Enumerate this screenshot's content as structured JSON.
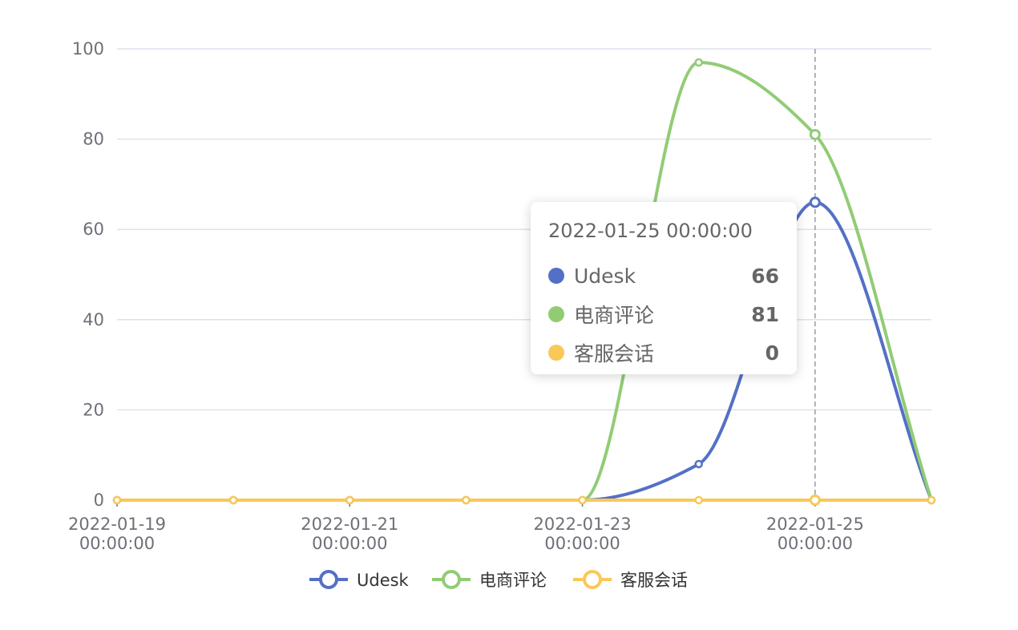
{
  "chart_data": {
    "type": "line",
    "smooth": true,
    "title": "",
    "xlabel": "",
    "ylabel": "",
    "ylim": [
      0,
      100
    ],
    "yticks": [
      0,
      20,
      40,
      60,
      80,
      100
    ],
    "x": [
      "2022-01-19 00:00:00",
      "2022-01-20 00:00:00",
      "2022-01-21 00:00:00",
      "2022-01-22 00:00:00",
      "2022-01-23 00:00:00",
      "2022-01-24 00:00:00",
      "2022-01-25 00:00:00",
      "2022-01-26 00:00:00"
    ],
    "xtick_labels": [
      {
        "date": "2022-01-19",
        "time": "00:00:00"
      },
      {
        "date": "2022-01-21",
        "time": "00:00:00"
      },
      {
        "date": "2022-01-23",
        "time": "00:00:00"
      },
      {
        "date": "2022-01-25",
        "time": "00:00:00"
      }
    ],
    "series": [
      {
        "name": "Udesk",
        "color": "#5470c6",
        "values": [
          0,
          0,
          0,
          0,
          0,
          8,
          66,
          0
        ]
      },
      {
        "name": "电商评论",
        "color": "#91cc75",
        "values": [
          0,
          0,
          0,
          0,
          0,
          97,
          81,
          0
        ]
      },
      {
        "name": "客服会话",
        "color": "#fac858",
        "values": [
          0,
          0,
          0,
          0,
          0,
          0,
          0,
          0
        ]
      }
    ],
    "grid": true,
    "legend_position": "bottom-center",
    "hover_x": "2022-01-25 00:00:00",
    "tooltip": {
      "title": "2022-01-25 00:00:00",
      "rows": [
        {
          "name": "Udesk",
          "value": "66",
          "color": "#5470c6"
        },
        {
          "name": "电商评论",
          "value": "81",
          "color": "#91cc75"
        },
        {
          "name": "客服会话",
          "value": "0",
          "color": "#fac858"
        }
      ]
    }
  }
}
